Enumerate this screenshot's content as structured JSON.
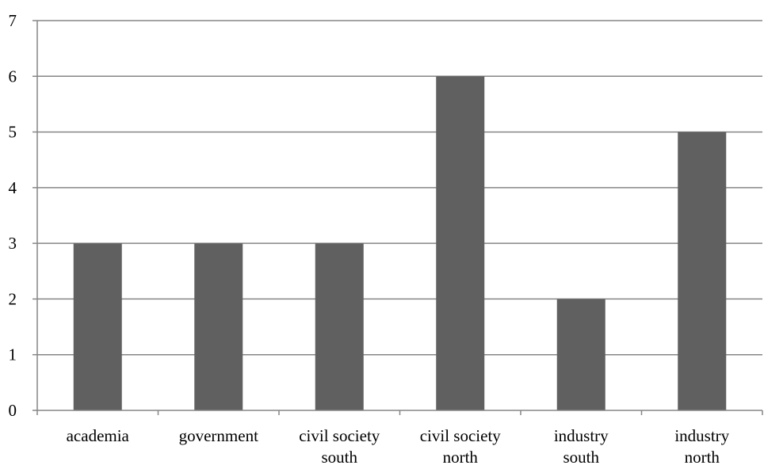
{
  "chart_data": {
    "type": "bar",
    "title": "",
    "xlabel": "",
    "ylabel": "",
    "categories": [
      [
        "academia"
      ],
      [
        "government"
      ],
      [
        "civil society",
        "south"
      ],
      [
        "civil society",
        "north"
      ],
      [
        "industry",
        "south"
      ],
      [
        "industry",
        "north"
      ]
    ],
    "values": [
      3,
      3,
      3,
      6,
      2,
      5
    ],
    "ylim": [
      0,
      7
    ],
    "yticks": [
      "0",
      "1",
      "2",
      "3",
      "4",
      "5",
      "6",
      "7"
    ],
    "grid": true,
    "legend": "none",
    "colors": {
      "bar": "#606060",
      "grid": "#868686",
      "axis": "#868686",
      "text": "#000000"
    }
  }
}
